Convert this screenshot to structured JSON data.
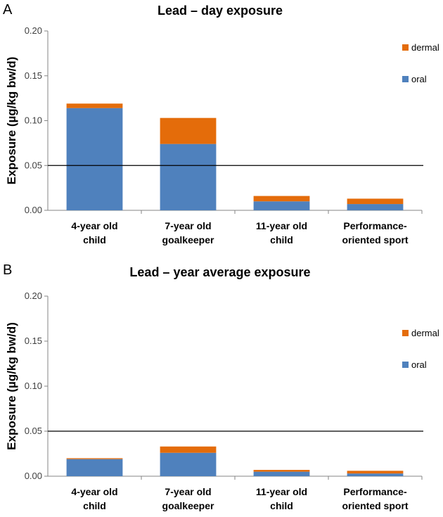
{
  "chart_data": [
    {
      "panel": "A",
      "type": "bar",
      "stacked": true,
      "title": "Lead – day exposure",
      "ylabel": "Exposure (µg/kg bw/d)",
      "xlabel": "",
      "ylim": [
        0,
        0.2
      ],
      "yticks": [
        "0.00",
        "0.05",
        "0.10",
        "0.15",
        "0.20"
      ],
      "categories": [
        [
          "4-year old",
          "child"
        ],
        [
          "7-year old",
          "goalkeeper"
        ],
        [
          "11-year old",
          "child"
        ],
        [
          "Performance-",
          "oriented sport"
        ]
      ],
      "series": [
        {
          "name": "oral",
          "color": "#4f81bd",
          "values": [
            0.114,
            0.074,
            0.01,
            0.007
          ]
        },
        {
          "name": "dermal",
          "color": "#e46c0a",
          "values": [
            0.005,
            0.029,
            0.006,
            0.006
          ]
        }
      ],
      "reference_line": 0.05,
      "legend": [
        "dermal",
        "oral"
      ]
    },
    {
      "panel": "B",
      "type": "bar",
      "stacked": true,
      "title": "Lead – year average exposure",
      "ylabel": "Exposure (µg/kg bw/d)",
      "xlabel": "",
      "ylim": [
        0,
        0.2
      ],
      "yticks": [
        "0.00",
        "0.05",
        "0.10",
        "0.15",
        "0.20"
      ],
      "categories": [
        [
          "4-year old",
          "child"
        ],
        [
          "7-year old",
          "goalkeeper"
        ],
        [
          "11-year old",
          "child"
        ],
        [
          "Performance-",
          "oriented sport"
        ]
      ],
      "series": [
        {
          "name": "oral",
          "color": "#4f81bd",
          "values": [
            0.019,
            0.026,
            0.005,
            0.003
          ]
        },
        {
          "name": "dermal",
          "color": "#e46c0a",
          "values": [
            0.001,
            0.007,
            0.002,
            0.003
          ]
        }
      ],
      "reference_line": 0.05,
      "legend": [
        "dermal",
        "oral"
      ]
    }
  ]
}
